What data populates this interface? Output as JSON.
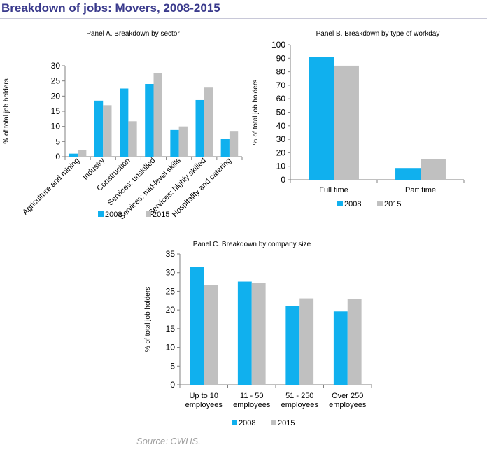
{
  "page": {
    "title": "Breakdown of jobs: Movers, 2008-2015",
    "source": "Source: CWHS."
  },
  "colors": {
    "s2008": "#10b0ee",
    "s2015": "#c0c0c0"
  },
  "chart_data": [
    {
      "id": "A",
      "type": "bar",
      "title": "Panel A. Breakdown by sector",
      "ylabel": "% of total job holders",
      "xlabel": "",
      "ylim": [
        0,
        30
      ],
      "ytick_step": 5,
      "categories": [
        "Agriculture and mining",
        "Industry",
        "Construction",
        "Services: unskilled",
        "Services: mid-level skills",
        "Services: highly skilled",
        "Hospitality and catering"
      ],
      "series": [
        {
          "name": "2008",
          "values": [
            1.0,
            18.5,
            22.5,
            24.0,
            8.8,
            18.7,
            6.0
          ]
        },
        {
          "name": "2015",
          "values": [
            2.3,
            17.0,
            11.7,
            27.5,
            10.0,
            22.8,
            8.5
          ]
        }
      ],
      "legend": "bottom",
      "grid": false
    },
    {
      "id": "B",
      "type": "bar",
      "title": "Panel B. Breakdown by type of workday",
      "ylabel": "% of total job holders",
      "xlabel": "",
      "ylim": [
        0,
        100
      ],
      "ytick_step": 10,
      "categories": [
        "Full time",
        "Part time"
      ],
      "series": [
        {
          "name": "2008",
          "values": [
            91.0,
            8.7
          ]
        },
        {
          "name": "2015",
          "values": [
            84.5,
            15.3
          ]
        }
      ],
      "legend": "bottom",
      "grid": false
    },
    {
      "id": "C",
      "type": "bar",
      "title": "Panel C. Breakdown by company size",
      "ylabel": "% of total job holders",
      "xlabel": "",
      "ylim": [
        0,
        35
      ],
      "ytick_step": 5,
      "categories": [
        "Up to 10 employees",
        "11 - 50 employees",
        "51 - 250 employees",
        "Over 250 employees"
      ],
      "series": [
        {
          "name": "2008",
          "values": [
            31.5,
            27.6,
            21.1,
            19.6
          ]
        },
        {
          "name": "2015",
          "values": [
            26.7,
            27.2,
            23.1,
            22.9
          ]
        }
      ],
      "legend": "bottom",
      "grid": false
    }
  ]
}
